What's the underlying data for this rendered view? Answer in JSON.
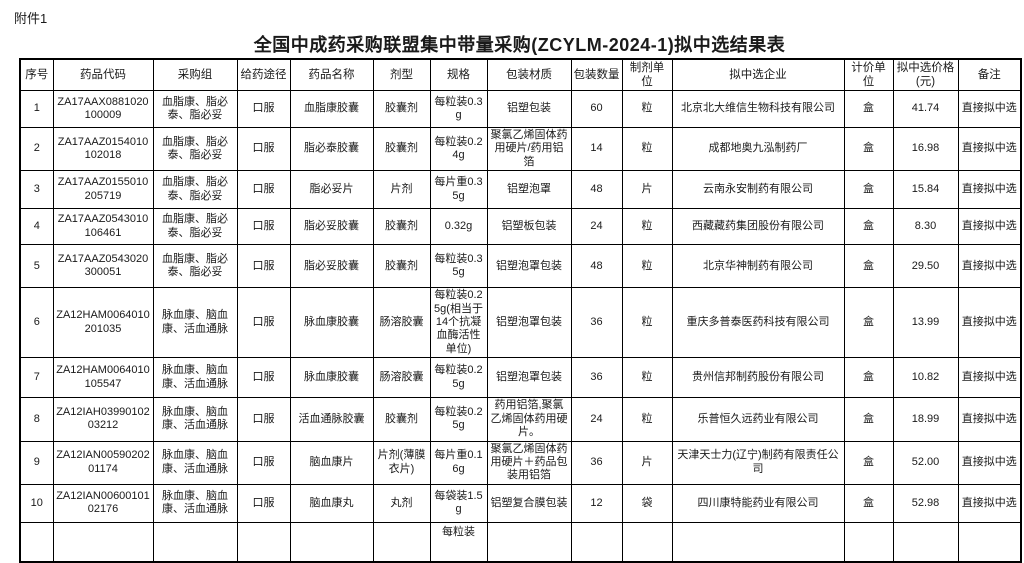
{
  "page": {
    "attachment_label": "附件1",
    "title": "全国中成药采购联盟集中带量采购(ZCYLM-2024-1)拟中选结果表"
  },
  "table": {
    "columns": [
      "序号",
      "药品代码",
      "采购组",
      "给药途径",
      "药品名称",
      "剂型",
      "规格",
      "包装材质",
      "包装数量",
      "制剂单位",
      "拟中选企业",
      "计价单位",
      "拟中选价格\n(元)",
      "备注"
    ],
    "rows": [
      [
        "1",
        "ZA17AAX0881020100009",
        "血脂康、脂必泰、脂必妥",
        "口服",
        "血脂康胶囊",
        "胶囊剂",
        "每粒装0.3g",
        "铝塑包装",
        "60",
        "粒",
        "北京北大维信生物科技有限公司",
        "盒",
        "41.74",
        "直接拟中选"
      ],
      [
        "2",
        "ZA17AAZ0154010102018",
        "血脂康、脂必泰、脂必妥",
        "口服",
        "脂必泰胶囊",
        "胶囊剂",
        "每粒装0.24g",
        "聚氯乙烯固体药用硬片/药用铝箔",
        "14",
        "粒",
        "成都地奥九泓制药厂",
        "盒",
        "16.98",
        "直接拟中选"
      ],
      [
        "3",
        "ZA17AAZ0155010205719",
        "血脂康、脂必泰、脂必妥",
        "口服",
        "脂必妥片",
        "片剂",
        "每片重0.35g",
        "铝塑泡罩",
        "48",
        "片",
        "云南永安制药有限公司",
        "盒",
        "15.84",
        "直接拟中选"
      ],
      [
        "4",
        "ZA17AAZ0543010106461",
        "血脂康、脂必泰、脂必妥",
        "口服",
        "脂必妥胶囊",
        "胶囊剂",
        "0.32g",
        "铝塑板包装",
        "24",
        "粒",
        "西藏藏药集团股份有限公司",
        "盒",
        "8.30",
        "直接拟中选"
      ],
      [
        "5",
        "ZA17AAZ0543020300051",
        "血脂康、脂必泰、脂必妥",
        "口服",
        "脂必妥胶囊",
        "胶囊剂",
        "每粒装0.35g",
        "铝塑泡罩包装",
        "48",
        "粒",
        "北京华神制药有限公司",
        "盒",
        "29.50",
        "直接拟中选"
      ],
      [
        "6",
        "ZA12HAM0064010201035",
        "脉血康、脑血康、活血通脉",
        "口服",
        "脉血康胶囊",
        "肠溶胶囊",
        "每粒装0.25g(相当于14个抗凝血酶活性单位)",
        "铝塑泡罩包装",
        "36",
        "粒",
        "重庆多普泰医药科技有限公司",
        "盒",
        "13.99",
        "直接拟中选"
      ],
      [
        "7",
        "ZA12HAM0064010105547",
        "脉血康、脑血康、活血通脉",
        "口服",
        "脉血康胶囊",
        "肠溶胶囊",
        "每粒装0.25g",
        "铝塑泡罩包装",
        "36",
        "粒",
        "贵州信邦制药股份有限公司",
        "盒",
        "10.82",
        "直接拟中选"
      ],
      [
        "8",
        "ZA12IAH0399010203212",
        "脉血康、脑血康、活血通脉",
        "口服",
        "活血通脉胶囊",
        "胶囊剂",
        "每粒装0.25g",
        "药用铝箔,聚氯乙烯固体药用硬片。",
        "24",
        "粒",
        "乐普恒久远药业有限公司",
        "盒",
        "18.99",
        "直接拟中选"
      ],
      [
        "9",
        "ZA12IAN0059020201174",
        "脉血康、脑血康、活血通脉",
        "口服",
        "脑血康片",
        "片剂(薄膜衣片)",
        "每片重0.16g",
        "聚氯乙烯固体药用硬片＋药品包装用铝箔",
        "36",
        "片",
        "天津天士力(辽宁)制药有限责任公司",
        "盒",
        "52.00",
        "直接拟中选"
      ],
      [
        "10",
        "ZA12IAN0060010102176",
        "脉血康、脑血康、活血通脉",
        "口服",
        "脑血康丸",
        "丸剂",
        "每袋装1.5g",
        "铝塑复合膜包装",
        "12",
        "袋",
        "四川康特能药业有限公司",
        "盒",
        "52.98",
        "直接拟中选"
      ]
    ],
    "partial_row": [
      "",
      "",
      "",
      "",
      "",
      "",
      "每粒装",
      "",
      "",
      "",
      "",
      "",
      "",
      ""
    ]
  }
}
